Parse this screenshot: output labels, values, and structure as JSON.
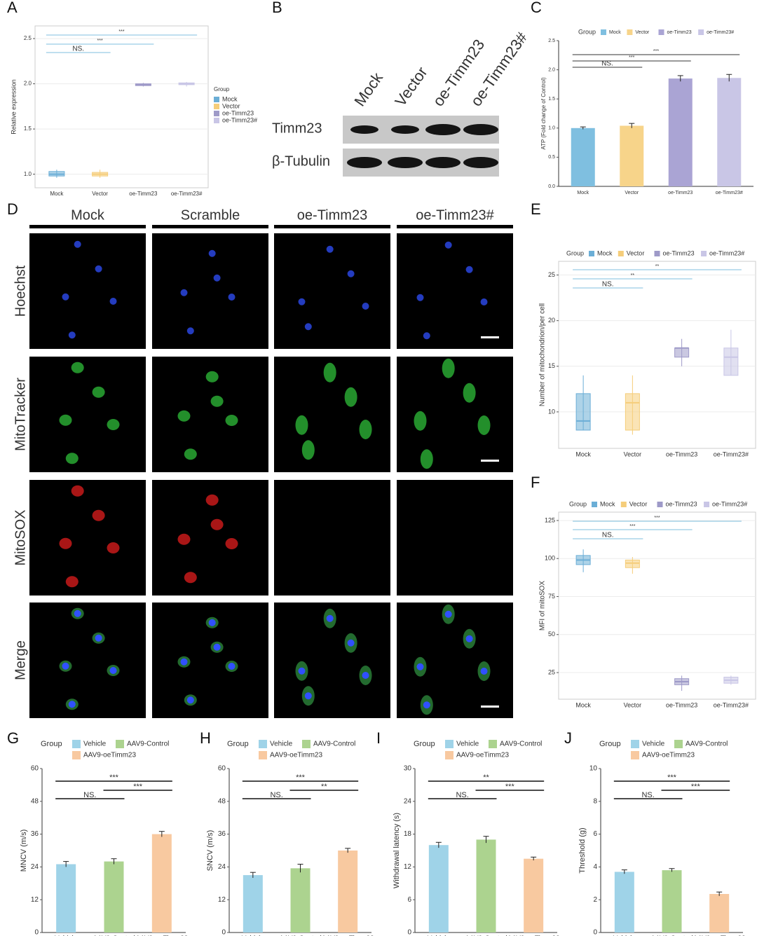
{
  "chart_data": [
    {
      "type": "box",
      "label": "A",
      "y_label": "Relative expression",
      "legend_title": "Group",
      "categories": [
        "Mock",
        "Vector",
        "oe-Timm23",
        "oe-Timm23#"
      ],
      "colors": [
        "#6baed6",
        "#f5cd7a",
        "#9e9ac8",
        "#c9c6e6"
      ],
      "medians": [
        1.0,
        1.0,
        1.99,
        2.0
      ],
      "q1": [
        0.98,
        0.98,
        1.98,
        1.99
      ],
      "q3": [
        1.03,
        1.02,
        2.0,
        2.01
      ],
      "whisker_low": [
        0.96,
        0.96,
        1.97,
        1.97
      ],
      "whisker_high": [
        1.05,
        1.05,
        2.01,
        2.02
      ],
      "ylim": [
        0.85,
        2.64
      ],
      "yticks": [
        {
          "value": 1,
          "label": "1.0"
        },
        1.5,
        {
          "value": 2,
          "label": "2.0"
        },
        2.5
      ],
      "grid": true,
      "annotations": [
        "NS.",
        "***",
        "***"
      ]
    },
    {
      "type": "bar",
      "label": "C",
      "y_label": "ATP (Fold change of Control)",
      "legend_title": "Group",
      "categories": [
        "Mock",
        "Vector",
        "oe-Timm23",
        "oe-Timm23#"
      ],
      "colors": [
        "#7fbfe0",
        "#f7d48a",
        "#aaa4d4",
        "#c9c6e6"
      ],
      "values": [
        1.0,
        1.04,
        1.85,
        1.86
      ],
      "errors": [
        0.02,
        0.04,
        0.05,
        0.06
      ],
      "ylim": [
        0,
        2.5
      ],
      "yticks": [
        {
          "value": 0,
          "label": "0.0"
        },
        0.5,
        {
          "value": 1,
          "label": "1.0"
        },
        1.5,
        {
          "value": 2,
          "label": "2.0"
        },
        2.5
      ],
      "grid": false,
      "annotations": [
        "NS.",
        "***",
        "***"
      ]
    },
    {
      "type": "box",
      "label": "E",
      "y_label": "Number of mitochondrion/per cell",
      "legend_title": "Group",
      "categories": [
        "Mock",
        "Vector",
        "oe-Timm23",
        "oe-Timm23#"
      ],
      "colors": [
        "#6baed6",
        "#f5cd7a",
        "#9e9ac8",
        "#c9c6e6"
      ],
      "medians": [
        9,
        11,
        17,
        16
      ],
      "q1": [
        8,
        8,
        16,
        14
      ],
      "q3": [
        12,
        12,
        17,
        17
      ],
      "whisker_low": [
        8,
        7.5,
        15,
        14
      ],
      "whisker_high": [
        14,
        14,
        18,
        19
      ],
      "ylim": [
        6,
        26.5
      ],
      "yticks": [
        10,
        15,
        20,
        25
      ],
      "grid": true,
      "annotations": [
        "NS.",
        "**",
        "**"
      ]
    },
    {
      "type": "box",
      "label": "F",
      "y_label": "MFI of mitoSOX",
      "legend_title": "Group",
      "categories": [
        "Mock",
        "Vector",
        "oe-Timm23",
        "oe-Timm23#"
      ],
      "colors": [
        "#6baed6",
        "#f5cd7a",
        "#9e9ac8",
        "#c9c6e6"
      ],
      "medians": [
        99,
        97,
        19,
        20
      ],
      "q1": [
        96,
        94,
        17,
        18
      ],
      "q3": [
        102,
        99,
        21,
        22
      ],
      "whisker_low": [
        91,
        90,
        13,
        17
      ],
      "whisker_high": [
        106,
        101,
        23,
        23
      ],
      "ylim": [
        7.5,
        130.5
      ],
      "yticks": [
        25,
        50,
        75,
        100,
        125
      ],
      "grid": true,
      "annotations": [
        "NS.",
        "***",
        "***"
      ]
    },
    {
      "type": "bar",
      "label": "G",
      "y_label": "MNCV (m/s)",
      "legend_title": "Group",
      "categories": [
        "Vehicle",
        "AAV9-Control",
        "AAV9-oeTimm23"
      ],
      "colors": [
        "#9fd3e8",
        "#acd38f",
        "#f8c9a0"
      ],
      "values": [
        25,
        26,
        36
      ],
      "errors": [
        1,
        1,
        1
      ],
      "ylim": [
        0,
        60
      ],
      "yticks": [
        0,
        12,
        24,
        36,
        48,
        60
      ],
      "grid": false,
      "annotations": [
        "NS.",
        "***",
        "***"
      ]
    },
    {
      "type": "bar",
      "label": "H",
      "y_label": "SNCV (m/s)",
      "legend_title": "Group",
      "categories": [
        "Vehicle",
        "AAV9-Control",
        "AAV9-oeTimm23"
      ],
      "colors": [
        "#9fd3e8",
        "#acd38f",
        "#f8c9a0"
      ],
      "values": [
        21,
        23.5,
        30
      ],
      "errors": [
        1,
        1.5,
        0.8
      ],
      "ylim": [
        0,
        60
      ],
      "yticks": [
        0,
        12,
        24,
        36,
        48,
        60
      ],
      "grid": false,
      "annotations": [
        "NS.",
        "**",
        "***"
      ]
    },
    {
      "type": "bar",
      "label": "I",
      "y_label": "Withdrawal latency (s)",
      "legend_title": "Group",
      "categories": [
        "Vehicle",
        "AAV9-Control",
        "AAV9-oeTimm23"
      ],
      "colors": [
        "#9fd3e8",
        "#acd38f",
        "#f8c9a0"
      ],
      "values": [
        16,
        17,
        13.5
      ],
      "errors": [
        0.5,
        0.6,
        0.3
      ],
      "ylim": [
        0,
        30
      ],
      "yticks": [
        0,
        6,
        12,
        18,
        24,
        30
      ],
      "grid": false,
      "annotations": [
        "NS.",
        "***",
        "**"
      ]
    },
    {
      "type": "bar",
      "label": "J",
      "y_label": "Threshold (g)",
      "legend_title": "Group",
      "categories": [
        "Vehicle",
        "AAV9-Control",
        "AAV9-oeTimm23"
      ],
      "colors": [
        "#9fd3e8",
        "#acd38f",
        "#f8c9a0"
      ],
      "values": [
        3.7,
        3.8,
        2.35
      ],
      "errors": [
        0.12,
        0.1,
        0.12
      ],
      "ylim": [
        0,
        10
      ],
      "yticks": [
        0,
        2,
        4,
        6,
        8,
        10
      ],
      "grid": false,
      "annotations": [
        "NS.",
        "***",
        "***"
      ]
    }
  ],
  "blot": {
    "label": "B",
    "lanes": [
      "Mock",
      "Vector",
      "oe-Timm23",
      "oe-Timm23#"
    ],
    "rows": [
      "Timm23",
      "β-Tubulin"
    ]
  },
  "microscopy": {
    "label": "D",
    "columns": [
      "Mock",
      "Scramble",
      "oe-Timm23",
      "oe-Timm23#"
    ],
    "rows": [
      "Hoechst",
      "MitoTracker",
      "MitoSOX",
      "Merge"
    ]
  }
}
